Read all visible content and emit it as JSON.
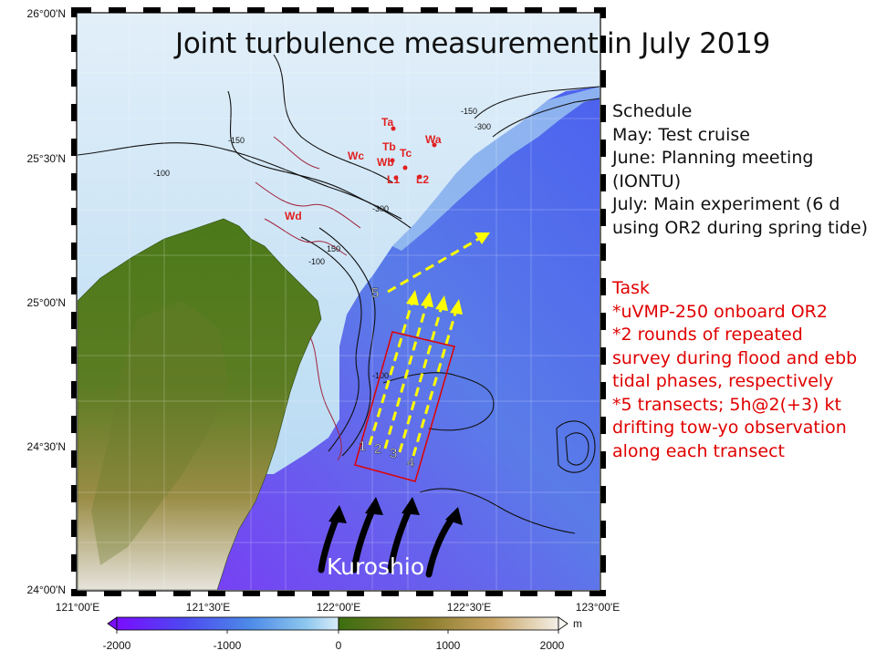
{
  "title": "Joint turbulence measurement in July 2019",
  "latitude_labels": [
    "26°00'N",
    "25°30'N",
    "25°00'N",
    "24°30'N",
    "24°00'N"
  ],
  "longitude_labels": [
    "121°00'E",
    "121°30'E",
    "122°00'E",
    "122°30'E",
    "123°00'E"
  ],
  "contour_labels": [
    "-150",
    "-100",
    "-300",
    "150",
    "-100",
    "-150",
    "-300",
    "-100"
  ],
  "stations": [
    "Ta",
    "Wa",
    "Tb",
    "Tc",
    "Wc",
    "Wb",
    "L1",
    "L2",
    "Wd"
  ],
  "transect_labels": [
    "5",
    "2",
    "3",
    "4",
    "1"
  ],
  "current_label": "Kuroshio",
  "colorbar": {
    "unit": "m",
    "ticks": [
      "-2000",
      "-1000",
      "0",
      "1000",
      "2000"
    ],
    "sea_colors": [
      "#7a0dff",
      "#4d48f0",
      "#4d8ae8",
      "#8cc6ee",
      "#d8ecf8"
    ],
    "land_colors": [
      "#3c6e10",
      "#8a7d2d",
      "#c9a565",
      "#f3efe6"
    ]
  },
  "schedule": {
    "heading": "Schedule",
    "items": [
      "May: Test cruise",
      "June: Planning meeting",
      "(IONTU)",
      "July: Main experiment (6 d",
      "using OR2 during spring tide)"
    ]
  },
  "task": {
    "heading": "Task",
    "items": [
      "*uVMP-250 onboard OR2",
      "*2 rounds of repeated",
      "survey during flood and ebb",
      "tidal phases, respectively",
      "*5 transects; 5h@2(+3) kt",
      "drifting tow-yo observation",
      "along each transect"
    ]
  },
  "colors": {
    "transect": "#ffff00",
    "survey_box": "#e00000",
    "station": "#e02020",
    "current_arrow": "#000000"
  },
  "icons": [
    "current-arrow-icon",
    "transect-arrow-icon"
  ]
}
